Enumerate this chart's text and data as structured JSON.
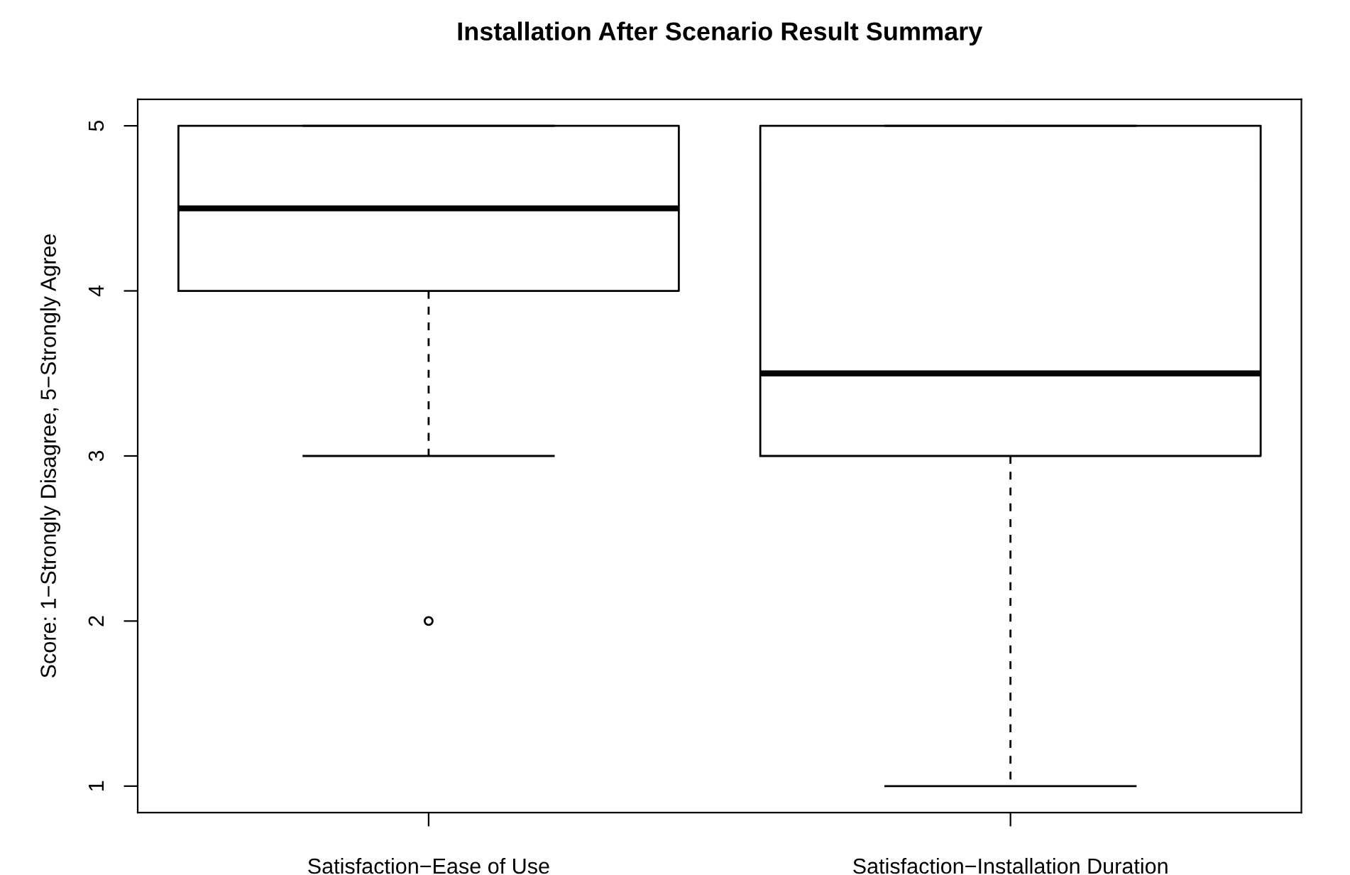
{
  "chart_data": {
    "type": "box",
    "title": "Installation After Scenario Result Summary",
    "ylabel": "Score: 1−Strongly Disagree, 5−Strongly Agree",
    "categories": [
      "Satisfaction−Ease of Use",
      "Satisfaction−Installation Duration"
    ],
    "boxes": [
      {
        "low": 3,
        "q1": 4,
        "median": 4.5,
        "q3": 5,
        "high": 5,
        "outliers": [
          2
        ]
      },
      {
        "low": 1,
        "q1": 3,
        "median": 3.5,
        "q3": 5,
        "high": 5
      }
    ],
    "ylim": [
      0.84,
      5.16
    ],
    "yticks": [
      1,
      2,
      3,
      4,
      5
    ],
    "grid": false
  }
}
